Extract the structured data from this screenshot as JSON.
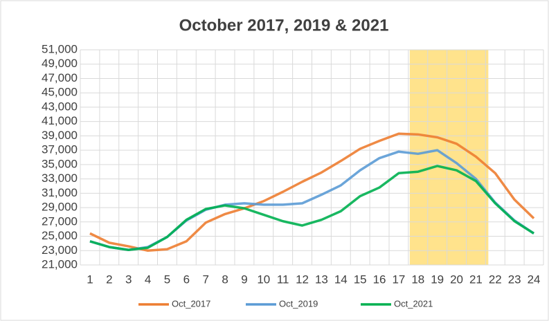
{
  "chart_data": {
    "type": "line",
    "title": "October 2017, 2019 & 2021",
    "categories": [
      "1",
      "2",
      "3",
      "4",
      "5",
      "6",
      "7",
      "8",
      "9",
      "10",
      "11",
      "12",
      "13",
      "14",
      "15",
      "16",
      "17",
      "18",
      "19",
      "20",
      "21",
      "22",
      "23",
      "24"
    ],
    "series": [
      {
        "name": "Oct_2017",
        "color": "#ed7d31",
        "values": [
          25400,
          24100,
          23600,
          23000,
          23200,
          24300,
          26900,
          28100,
          28900,
          29900,
          31200,
          32600,
          33900,
          35500,
          37200,
          38300,
          39300,
          39200,
          38800,
          37900,
          36100,
          33800,
          30100,
          27500
        ]
      },
      {
        "name": "Oct_2019",
        "color": "#5b9bd5",
        "values": [
          24300,
          23500,
          23100,
          23500,
          24900,
          27200,
          28700,
          29400,
          29600,
          29400,
          29400,
          29600,
          30800,
          32100,
          34200,
          35900,
          36800,
          36500,
          37000,
          35200,
          33000,
          29700,
          27200,
          25400
        ]
      },
      {
        "name": "Oct_2021",
        "color": "#00b050",
        "values": [
          24300,
          23500,
          23100,
          23400,
          24900,
          27300,
          28800,
          29300,
          28900,
          28000,
          27100,
          26500,
          27300,
          28500,
          30600,
          31800,
          33800,
          34000,
          34800,
          34200,
          32700,
          29600,
          27100,
          25400
        ]
      }
    ],
    "highlight": [
      "18",
      "21"
    ],
    "highlight_color": "#ffd966",
    "ylim": [
      21000,
      51000
    ],
    "yticks": [
      {
        "value": 21000,
        "label": "21,000"
      },
      {
        "value": 23000,
        "label": "23,000"
      },
      {
        "value": 25000,
        "label": "25,000"
      },
      {
        "value": 27000,
        "label": "27,000"
      },
      {
        "value": 29000,
        "label": "29,000"
      },
      {
        "value": 31000,
        "label": "31,000"
      },
      {
        "value": 33000,
        "label": "33,000"
      },
      {
        "value": 35000,
        "label": "35,000"
      },
      {
        "value": 37000,
        "label": "37,000"
      },
      {
        "value": 39000,
        "label": "39,000"
      },
      {
        "value": 41000,
        "label": "41,000"
      },
      {
        "value": 43000,
        "label": "43,000"
      },
      {
        "value": 45000,
        "label": "45,000"
      },
      {
        "value": 47000,
        "label": "47,000"
      },
      {
        "value": 49000,
        "label": "49,000"
      },
      {
        "value": 51000,
        "label": "51,000"
      }
    ],
    "grid": true,
    "legend": "bottom"
  }
}
